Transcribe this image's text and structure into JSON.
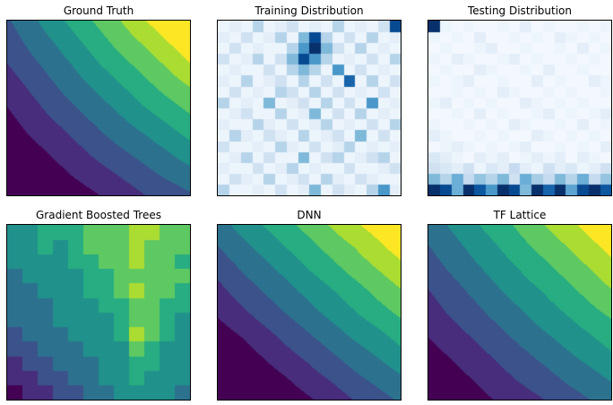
{
  "figure": {
    "background": "#ffffff",
    "title_color": "#000000",
    "axes": {
      "ticks": "none",
      "spine_color": "#000000"
    }
  },
  "palette": {
    "viridis": [
      "#440154",
      "#472d7b",
      "#3b528b",
      "#2c728e",
      "#21918c",
      "#27ad81",
      "#5ec962",
      "#aadc32",
      "#fde725"
    ],
    "blues": [
      "#f7fbff",
      "#deebf7",
      "#c6dbef",
      "#9ecae1",
      "#6baed6",
      "#4292c6",
      "#2171b5",
      "#08519c",
      "#08306b"
    ]
  },
  "chart_data": [
    {
      "type": "heatmap",
      "title": "Ground Truth",
      "colormap": "viridis",
      "render": "smooth",
      "levels": 9,
      "value_range": [
        0,
        1
      ],
      "grid": [
        [
          0.32,
          0.41,
          0.51,
          0.6,
          0.69,
          0.78,
          0.88,
          0.97,
          1.0
        ],
        [
          0.27,
          0.36,
          0.44,
          0.53,
          0.62,
          0.71,
          0.79,
          0.88,
          0.97
        ],
        [
          0.22,
          0.3,
          0.38,
          0.46,
          0.55,
          0.63,
          0.71,
          0.79,
          0.88
        ],
        [
          0.16,
          0.24,
          0.32,
          0.4,
          0.47,
          0.55,
          0.63,
          0.71,
          0.78
        ],
        [
          0.11,
          0.18,
          0.26,
          0.33,
          0.4,
          0.47,
          0.55,
          0.62,
          0.69
        ],
        [
          0.06,
          0.13,
          0.19,
          0.26,
          0.33,
          0.4,
          0.46,
          0.53,
          0.6
        ],
        [
          0.01,
          0.07,
          0.13,
          0.19,
          0.26,
          0.32,
          0.38,
          0.44,
          0.51
        ],
        [
          0.0,
          0.01,
          0.07,
          0.13,
          0.18,
          0.24,
          0.3,
          0.36,
          0.41
        ],
        [
          0.0,
          0.0,
          0.01,
          0.06,
          0.11,
          0.16,
          0.22,
          0.27,
          0.32
        ]
      ]
    },
    {
      "type": "heatmap",
      "title": "Training Distribution",
      "colormap": "blues",
      "render": "cells",
      "value_range": [
        0,
        1
      ],
      "grid": [
        [
          0.05,
          0.1,
          0.05,
          0.3,
          0.05,
          0.1,
          0.2,
          0.05,
          0.1,
          0.05,
          0.3,
          0.05,
          0.1,
          0.05,
          0.2,
          0.9
        ],
        [
          0.1,
          0.05,
          0.2,
          0.05,
          0.1,
          0.3,
          0.05,
          0.45,
          0.9,
          0.3,
          0.05,
          0.2,
          0.05,
          0.3,
          0.05,
          0.1
        ],
        [
          0.05,
          0.2,
          0.05,
          0.1,
          0.05,
          0.05,
          0.3,
          0.6,
          1.0,
          0.45,
          0.2,
          0.05,
          0.3,
          0.05,
          0.1,
          0.05
        ],
        [
          0.2,
          0.05,
          0.1,
          0.3,
          0.05,
          0.2,
          0.45,
          0.9,
          0.6,
          0.3,
          0.05,
          0.1,
          0.05,
          0.2,
          0.05,
          0.3
        ],
        [
          0.05,
          0.1,
          0.05,
          0.05,
          0.2,
          0.05,
          0.3,
          0.45,
          0.3,
          0.05,
          0.6,
          0.05,
          0.2,
          0.05,
          0.1,
          0.05
        ],
        [
          0.1,
          0.05,
          0.3,
          0.05,
          0.1,
          0.2,
          0.05,
          0.3,
          0.05,
          0.2,
          0.05,
          0.8,
          0.05,
          0.3,
          0.05,
          0.2
        ],
        [
          0.05,
          0.2,
          0.05,
          0.1,
          0.05,
          0.3,
          0.2,
          0.05,
          0.3,
          0.05,
          0.2,
          0.05,
          0.1,
          0.05,
          0.2,
          0.05
        ],
        [
          0.3,
          0.05,
          0.1,
          0.05,
          0.45,
          0.05,
          0.1,
          0.2,
          0.05,
          0.3,
          0.05,
          0.2,
          0.05,
          0.6,
          0.05,
          0.1
        ],
        [
          0.05,
          0.1,
          0.2,
          0.05,
          0.05,
          0.3,
          0.05,
          0.1,
          0.45,
          0.05,
          0.2,
          0.05,
          0.3,
          0.05,
          0.1,
          0.05
        ],
        [
          0.1,
          0.05,
          0.05,
          0.3,
          0.1,
          0.05,
          0.2,
          0.05,
          0.1,
          0.3,
          0.05,
          0.1,
          0.05,
          0.2,
          0.05,
          0.3
        ],
        [
          0.05,
          0.3,
          0.1,
          0.05,
          0.2,
          0.1,
          0.05,
          0.3,
          0.05,
          0.1,
          0.2,
          0.05,
          0.45,
          0.05,
          0.2,
          0.05
        ],
        [
          0.2,
          0.05,
          0.05,
          0.1,
          0.05,
          0.3,
          0.1,
          0.05,
          0.2,
          0.05,
          0.1,
          0.3,
          0.05,
          0.1,
          0.05,
          0.1
        ],
        [
          0.05,
          0.1,
          0.3,
          0.05,
          0.2,
          0.05,
          0.05,
          0.45,
          0.05,
          0.2,
          0.3,
          0.05,
          0.1,
          0.2,
          0.3,
          0.05
        ],
        [
          0.1,
          0.05,
          0.05,
          0.2,
          0.05,
          0.1,
          0.3,
          0.05,
          0.1,
          0.05,
          0.05,
          0.2,
          0.05,
          0.05,
          0.1,
          0.2
        ],
        [
          0.05,
          0.2,
          0.1,
          0.05,
          0.3,
          0.05,
          0.1,
          0.2,
          0.05,
          0.3,
          0.1,
          0.05,
          0.2,
          0.1,
          0.05,
          0.05
        ],
        [
          0.3,
          0.05,
          0.05,
          0.1,
          0.05,
          0.2,
          0.05,
          0.1,
          0.45,
          0.05,
          0.2,
          0.1,
          0.05,
          0.3,
          0.6,
          0.1
        ]
      ]
    },
    {
      "type": "heatmap",
      "title": "Testing Distribution",
      "colormap": "blues",
      "render": "cells",
      "value_range": [
        0,
        1
      ],
      "grid": [
        [
          1.0,
          0.05,
          0.02,
          0.05,
          0.02,
          0.02,
          0.05,
          0.02,
          0.1,
          0.02,
          0.05,
          0.02,
          0.02,
          0.05,
          0.02,
          0.05
        ],
        [
          0.05,
          0.02,
          0.05,
          0.02,
          0.1,
          0.02,
          0.02,
          0.05,
          0.02,
          0.05,
          0.02,
          0.1,
          0.05,
          0.02,
          0.05,
          0.02
        ],
        [
          0.02,
          0.05,
          0.02,
          0.02,
          0.05,
          0.1,
          0.02,
          0.02,
          0.05,
          0.02,
          0.02,
          0.05,
          0.02,
          0.1,
          0.02,
          0.05
        ],
        [
          0.05,
          0.02,
          0.1,
          0.05,
          0.02,
          0.02,
          0.05,
          0.1,
          0.02,
          0.05,
          0.02,
          0.02,
          0.05,
          0.02,
          0.05,
          0.02
        ],
        [
          0.02,
          0.05,
          0.02,
          0.02,
          0.1,
          0.05,
          0.02,
          0.02,
          0.05,
          0.02,
          0.1,
          0.02,
          0.02,
          0.05,
          0.02,
          0.02
        ],
        [
          0.05,
          0.02,
          0.05,
          0.1,
          0.02,
          0.02,
          0.05,
          0.02,
          0.02,
          0.1,
          0.02,
          0.05,
          0.02,
          0.02,
          0.1,
          0.05
        ],
        [
          0.02,
          0.02,
          0.05,
          0.02,
          0.05,
          0.02,
          0.1,
          0.05,
          0.02,
          0.02,
          0.05,
          0.02,
          0.05,
          0.02,
          0.02,
          0.05
        ],
        [
          0.05,
          0.1,
          0.02,
          0.05,
          0.02,
          0.05,
          0.02,
          0.02,
          0.1,
          0.05,
          0.02,
          0.05,
          0.02,
          0.05,
          0.02,
          0.02
        ],
        [
          0.02,
          0.02,
          0.05,
          0.02,
          0.1,
          0.02,
          0.05,
          0.02,
          0.02,
          0.05,
          0.1,
          0.02,
          0.05,
          0.02,
          0.05,
          0.1
        ],
        [
          0.05,
          0.02,
          0.02,
          0.05,
          0.02,
          0.05,
          0.02,
          0.1,
          0.05,
          0.02,
          0.02,
          0.05,
          0.02,
          0.1,
          0.02,
          0.05
        ],
        [
          0.1,
          0.05,
          0.02,
          0.02,
          0.05,
          0.02,
          0.05,
          0.02,
          0.02,
          0.1,
          0.05,
          0.02,
          0.05,
          0.02,
          0.05,
          0.02
        ],
        [
          0.02,
          0.05,
          0.1,
          0.05,
          0.02,
          0.05,
          0.02,
          0.05,
          0.1,
          0.02,
          0.02,
          0.05,
          0.02,
          0.05,
          0.02,
          0.1
        ],
        [
          0.15,
          0.1,
          0.05,
          0.02,
          0.1,
          0.05,
          0.1,
          0.02,
          0.05,
          0.1,
          0.05,
          0.1,
          0.02,
          0.1,
          0.05,
          0.02
        ],
        [
          0.2,
          0.15,
          0.1,
          0.2,
          0.05,
          0.15,
          0.1,
          0.25,
          0.1,
          0.05,
          0.2,
          0.1,
          0.15,
          0.05,
          0.1,
          0.2
        ],
        [
          0.45,
          0.3,
          0.5,
          0.25,
          0.4,
          0.3,
          0.45,
          0.2,
          0.5,
          0.35,
          0.25,
          0.45,
          0.3,
          0.5,
          0.25,
          0.4
        ],
        [
          1.0,
          0.9,
          0.5,
          1.0,
          0.85,
          0.6,
          1.0,
          0.9,
          0.45,
          1.0,
          0.8,
          1.0,
          0.55,
          0.9,
          1.0,
          0.85
        ]
      ]
    },
    {
      "type": "heatmap",
      "title": "Gradient Boosted Trees",
      "colormap": "viridis",
      "render": "cells",
      "levels": 9,
      "value_range": [
        0,
        1
      ],
      "grid": [
        [
          0.55,
          0.55,
          0.62,
          0.62,
          0.62,
          0.68,
          0.68,
          0.75,
          0.8,
          0.8,
          0.68,
          0.68
        ],
        [
          0.48,
          0.55,
          0.62,
          0.55,
          0.62,
          0.68,
          0.68,
          0.75,
          0.8,
          0.75,
          0.68,
          0.68
        ],
        [
          0.48,
          0.48,
          0.55,
          0.55,
          0.62,
          0.62,
          0.68,
          0.68,
          0.8,
          0.75,
          0.68,
          0.62
        ],
        [
          0.42,
          0.48,
          0.48,
          0.55,
          0.55,
          0.62,
          0.62,
          0.68,
          0.75,
          0.75,
          0.68,
          0.68
        ],
        [
          0.42,
          0.42,
          0.48,
          0.48,
          0.55,
          0.62,
          0.62,
          0.68,
          0.8,
          0.75,
          0.68,
          0.62
        ],
        [
          0.35,
          0.42,
          0.42,
          0.48,
          0.55,
          0.55,
          0.62,
          0.62,
          0.75,
          0.68,
          0.62,
          0.62
        ],
        [
          0.35,
          0.35,
          0.42,
          0.48,
          0.48,
          0.55,
          0.55,
          0.62,
          0.68,
          0.68,
          0.62,
          0.55
        ],
        [
          0.3,
          0.35,
          0.42,
          0.42,
          0.48,
          0.48,
          0.55,
          0.62,
          0.85,
          0.68,
          0.62,
          0.55
        ],
        [
          0.3,
          0.3,
          0.35,
          0.42,
          0.42,
          0.48,
          0.55,
          0.55,
          0.68,
          0.62,
          0.55,
          0.55
        ],
        [
          0.22,
          0.3,
          0.3,
          0.35,
          0.42,
          0.42,
          0.48,
          0.55,
          0.62,
          0.62,
          0.55,
          0.48
        ],
        [
          0.15,
          0.22,
          0.3,
          0.3,
          0.35,
          0.42,
          0.48,
          0.48,
          0.62,
          0.55,
          0.48,
          0.48
        ],
        [
          0.1,
          0.15,
          0.22,
          0.3,
          0.3,
          0.35,
          0.42,
          0.48,
          0.55,
          0.55,
          0.48,
          0.42
        ]
      ]
    },
    {
      "type": "heatmap",
      "title": "DNN",
      "colormap": "viridis",
      "render": "smooth",
      "levels": 9,
      "value_range": [
        0,
        1
      ],
      "grid": [
        [
          0.4,
          0.48,
          0.56,
          0.63,
          0.71,
          0.79,
          0.87,
          0.94,
          1.0
        ],
        [
          0.33,
          0.41,
          0.48,
          0.56,
          0.63,
          0.71,
          0.78,
          0.86,
          0.94
        ],
        [
          0.26,
          0.34,
          0.41,
          0.48,
          0.56,
          0.63,
          0.71,
          0.78,
          0.85
        ],
        [
          0.19,
          0.27,
          0.34,
          0.41,
          0.48,
          0.55,
          0.62,
          0.7,
          0.77
        ],
        [
          0.13,
          0.2,
          0.27,
          0.34,
          0.41,
          0.48,
          0.55,
          0.62,
          0.69
        ],
        [
          0.06,
          0.12,
          0.19,
          0.26,
          0.33,
          0.4,
          0.47,
          0.53,
          0.6
        ],
        [
          0.0,
          0.05,
          0.12,
          0.19,
          0.25,
          0.32,
          0.39,
          0.45,
          0.52
        ],
        [
          0.0,
          0.0,
          0.05,
          0.11,
          0.18,
          0.24,
          0.31,
          0.37,
          0.43
        ],
        [
          0.0,
          0.0,
          0.0,
          0.04,
          0.1,
          0.16,
          0.23,
          0.29,
          0.35
        ]
      ]
    },
    {
      "type": "heatmap",
      "title": "TF Lattice",
      "colormap": "viridis",
      "render": "smooth",
      "levels": 9,
      "value_range": [
        0,
        1
      ],
      "grid": [
        [
          0.38,
          0.46,
          0.54,
          0.61,
          0.69,
          0.77,
          0.85,
          0.92,
          1.0
        ],
        [
          0.33,
          0.4,
          0.48,
          0.55,
          0.63,
          0.7,
          0.77,
          0.85,
          0.92
        ],
        [
          0.28,
          0.35,
          0.42,
          0.49,
          0.56,
          0.63,
          0.7,
          0.77,
          0.85
        ],
        [
          0.22,
          0.29,
          0.36,
          0.43,
          0.5,
          0.56,
          0.63,
          0.7,
          0.77
        ],
        [
          0.17,
          0.24,
          0.3,
          0.37,
          0.43,
          0.5,
          0.56,
          0.63,
          0.69
        ],
        [
          0.12,
          0.18,
          0.24,
          0.3,
          0.37,
          0.43,
          0.49,
          0.55,
          0.61
        ],
        [
          0.07,
          0.12,
          0.18,
          0.24,
          0.3,
          0.36,
          0.42,
          0.48,
          0.54
        ],
        [
          0.01,
          0.07,
          0.12,
          0.18,
          0.24,
          0.29,
          0.35,
          0.4,
          0.46
        ],
        [
          0.0,
          0.01,
          0.07,
          0.12,
          0.17,
          0.22,
          0.28,
          0.33,
          0.38
        ]
      ]
    }
  ]
}
